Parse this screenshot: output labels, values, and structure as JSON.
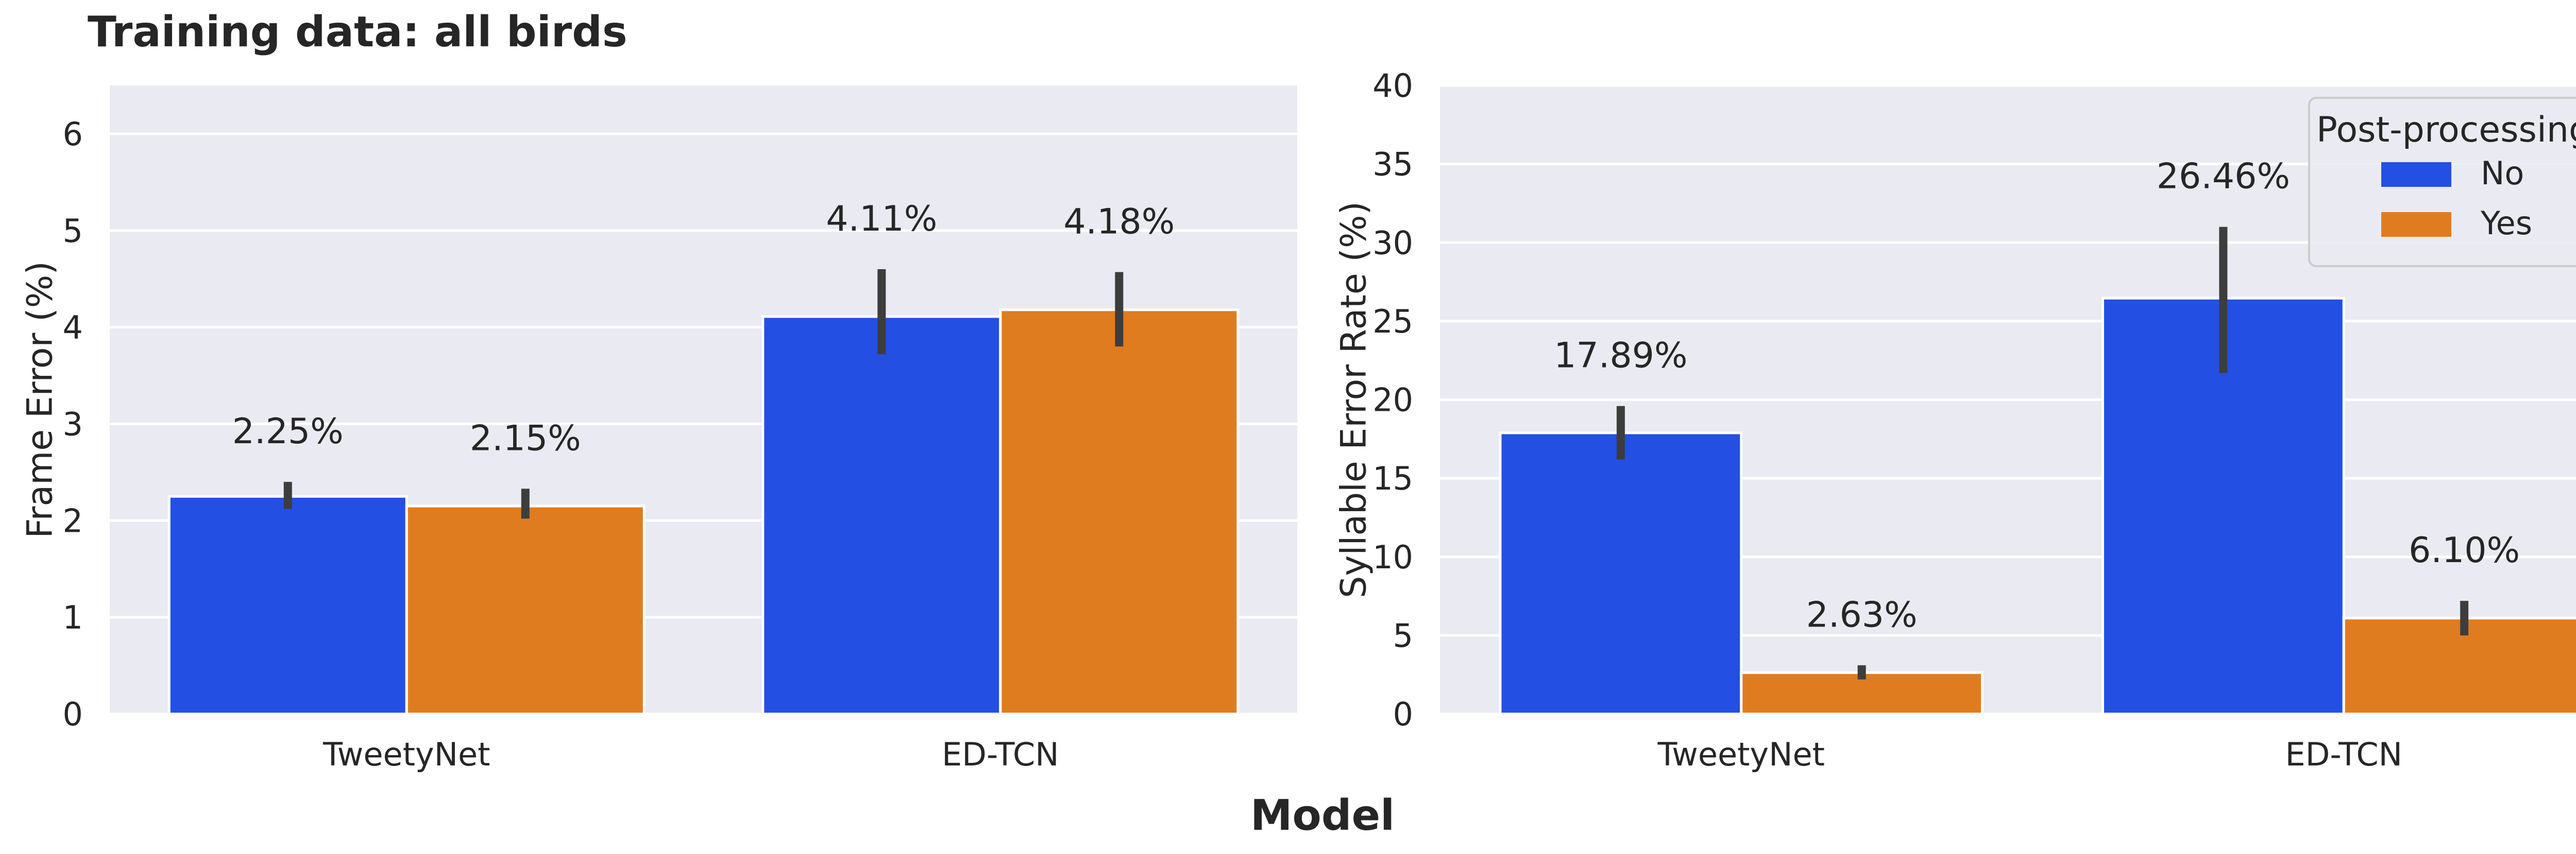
{
  "figure": {
    "title": "Training data: all birds",
    "xlabel": "Model"
  },
  "colors": {
    "No": "#2350e3",
    "Yes": "#e07c20",
    "axes_bg": "#eaeaf2",
    "grid": "#ffffff",
    "errorbar": "#3d3d3d",
    "text": "#262626"
  },
  "legend": {
    "title": "Post-processing",
    "entries": [
      "No",
      "Yes"
    ],
    "placement": "top-right"
  },
  "chart_data": [
    {
      "type": "bar",
      "title": "",
      "xlabel": "",
      "ylabel": "Frame Error (%)",
      "categories": [
        "TweetyNet",
        "ED-TCN"
      ],
      "ylim": [
        0,
        6.5
      ],
      "yticks": [
        0,
        1,
        2,
        3,
        4,
        5,
        6
      ],
      "grid": true,
      "series": [
        {
          "name": "No",
          "values": [
            2.25,
            4.11
          ],
          "err_low": [
            2.12,
            3.72
          ],
          "err_high": [
            2.4,
            4.6
          ],
          "labels": [
            "2.25%",
            "4.11%"
          ]
        },
        {
          "name": "Yes",
          "values": [
            2.15,
            4.18
          ],
          "err_low": [
            2.02,
            3.8
          ],
          "err_high": [
            2.33,
            4.57
          ],
          "labels": [
            "2.15%",
            "4.18%"
          ]
        }
      ]
    },
    {
      "type": "bar",
      "title": "",
      "xlabel": "",
      "ylabel": "Syllable Error Rate (%)",
      "categories": [
        "TweetyNet",
        "ED-TCN"
      ],
      "ylim": [
        0,
        40
      ],
      "yticks": [
        0,
        5,
        10,
        15,
        20,
        25,
        30,
        35,
        40
      ],
      "grid": true,
      "series": [
        {
          "name": "No",
          "values": [
            17.89,
            26.46
          ],
          "err_low": [
            16.2,
            21.7
          ],
          "err_high": [
            19.6,
            31.0
          ],
          "labels": [
            "17.89%",
            "26.46%"
          ]
        },
        {
          "name": "Yes",
          "values": [
            2.63,
            6.1
          ],
          "err_low": [
            2.2,
            5.0
          ],
          "err_high": [
            3.1,
            7.2
          ],
          "labels": [
            "2.63%",
            "6.10%"
          ]
        }
      ]
    }
  ]
}
